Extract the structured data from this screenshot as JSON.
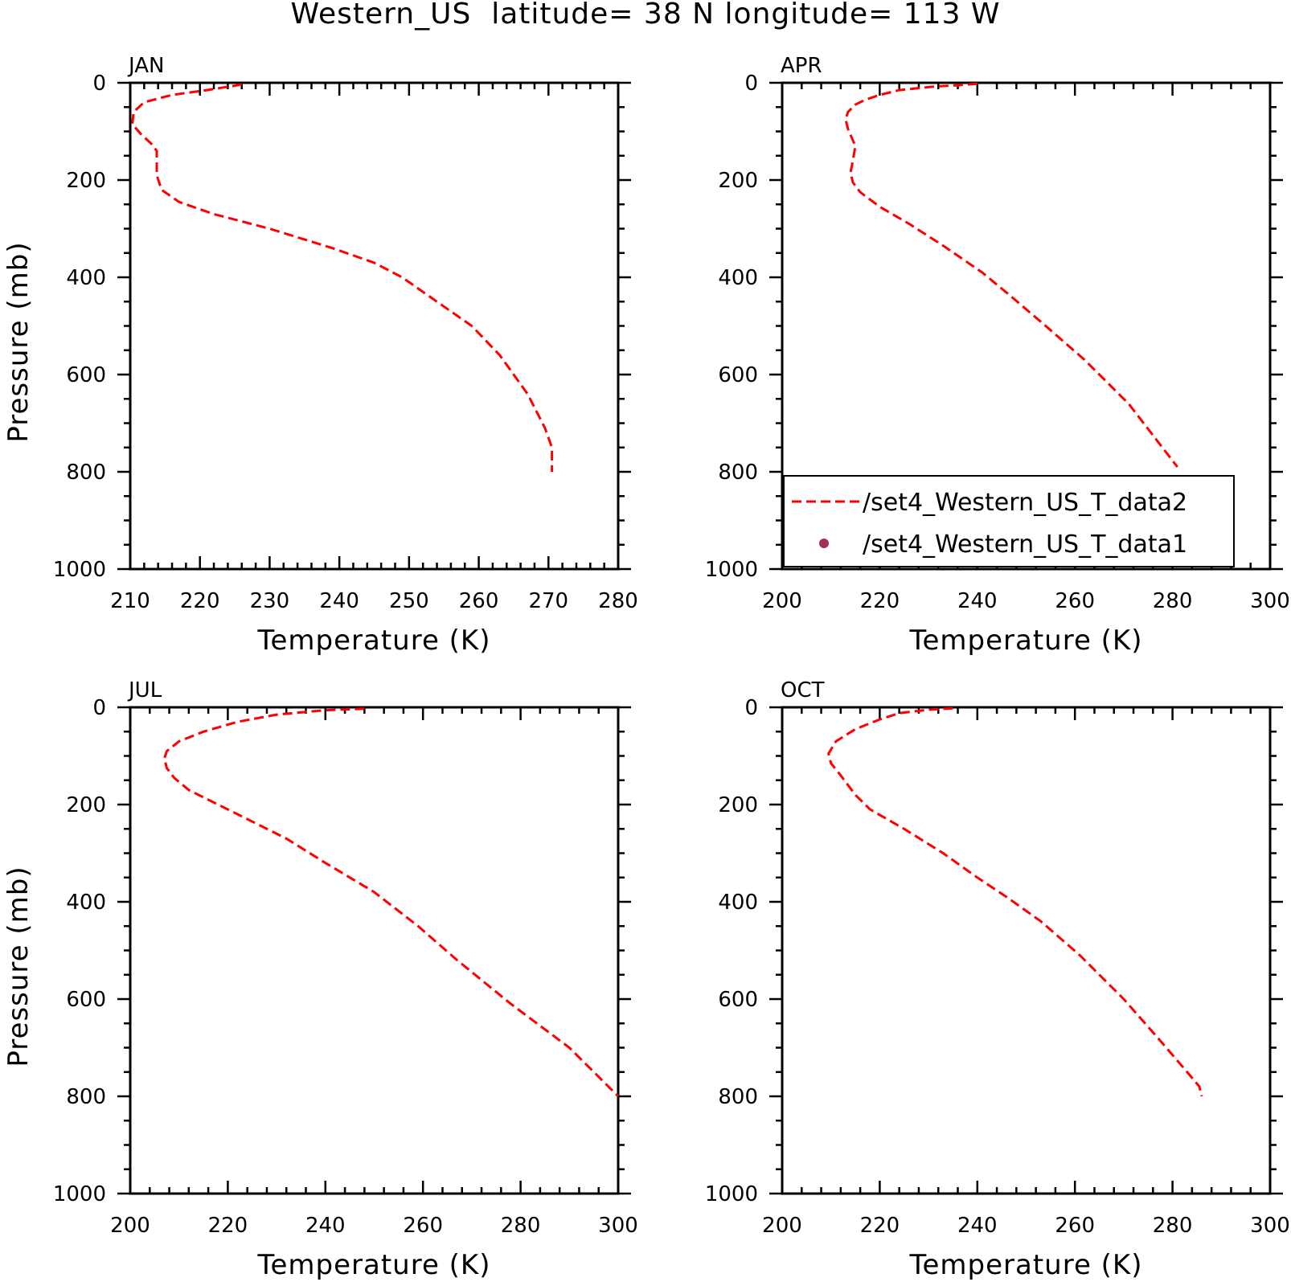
{
  "figure": {
    "title": "Western_US  latitude= 38 N longitude= 113 W",
    "line_color": "#ff0000",
    "marker_color": "#a0305a"
  },
  "chart_data": [
    {
      "type": "line",
      "title": "JAN",
      "xlabel": "Temperature (K)",
      "ylabel": "Pressure (mb)",
      "xlim": [
        210,
        280
      ],
      "ylim": [
        1000,
        0
      ],
      "y_inverted": true,
      "xticks": [
        210,
        220,
        230,
        240,
        250,
        260,
        270,
        280
      ],
      "yticks": [
        0,
        200,
        400,
        600,
        800,
        1000
      ],
      "series": [
        {
          "name": "/set4_Western_US_T_data2",
          "style": "dashed",
          "color": "#ff0000",
          "points": [
            [
              226,
              3
            ],
            [
              225,
              6
            ],
            [
              221,
              15
            ],
            [
              216,
              25
            ],
            [
              212,
              40
            ],
            [
              210.5,
              60
            ],
            [
              210.3,
              85
            ],
            [
              211.5,
              105
            ],
            [
              213,
              125
            ],
            [
              213.8,
              140
            ],
            [
              213.8,
              160
            ],
            [
              213.8,
              190
            ],
            [
              214.5,
              220
            ],
            [
              217,
              245
            ],
            [
              222,
              270
            ],
            [
              230,
              300
            ],
            [
              239,
              340
            ],
            [
              245,
              370
            ],
            [
              249,
              400
            ],
            [
              254,
              450
            ],
            [
              259,
              500
            ],
            [
              263,
              560
            ],
            [
              267,
              640
            ],
            [
              269.5,
              710
            ],
            [
              270.5,
              750
            ],
            [
              270.5,
              800
            ]
          ]
        }
      ]
    },
    {
      "type": "line",
      "title": "APR",
      "xlabel": "Temperature (K)",
      "ylabel": "",
      "xlim": [
        200,
        300
      ],
      "ylim": [
        1000,
        0
      ],
      "y_inverted": true,
      "xticks": [
        200,
        220,
        240,
        260,
        280,
        300
      ],
      "yticks": [
        0,
        200,
        400,
        600,
        800,
        1000
      ],
      "legend": {
        "position": "bottom-left",
        "entries": [
          {
            "label": "/set4_Western_US_T_data2",
            "style": "dashed-line",
            "color": "#ff0000"
          },
          {
            "label": "/set4_Western_US_T_data1",
            "style": "marker",
            "color": "#a0305a"
          }
        ]
      },
      "series": [
        {
          "name": "/set4_Western_US_T_data2",
          "style": "dashed",
          "color": "#ff0000",
          "points": [
            [
              240,
              2
            ],
            [
              236,
              5
            ],
            [
              231,
              8
            ],
            [
              224,
              15
            ],
            [
              220,
              25
            ],
            [
              217,
              35
            ],
            [
              215,
              45
            ],
            [
              213.5,
              60
            ],
            [
              213,
              75
            ],
            [
              213.5,
              95
            ],
            [
              215,
              130
            ],
            [
              214.5,
              160
            ],
            [
              214,
              185
            ],
            [
              214.5,
              205
            ],
            [
              216,
              225
            ],
            [
              220,
              255
            ],
            [
              226,
              290
            ],
            [
              233,
              335
            ],
            [
              241,
              390
            ],
            [
              247,
              440
            ],
            [
              254,
              500
            ],
            [
              262,
              570
            ],
            [
              271,
              660
            ],
            [
              281,
              790
            ]
          ]
        }
      ]
    },
    {
      "type": "line",
      "title": "JUL",
      "xlabel": "Temperature (K)",
      "ylabel": "Pressure (mb)",
      "xlim": [
        200,
        300
      ],
      "ylim": [
        1000,
        0
      ],
      "y_inverted": true,
      "xticks": [
        200,
        220,
        240,
        260,
        280,
        300
      ],
      "yticks": [
        0,
        200,
        400,
        600,
        800,
        1000
      ],
      "series": [
        {
          "name": "/set4_Western_US_T_data2",
          "style": "dashed",
          "color": "#ff0000",
          "points": [
            [
              248,
              3
            ],
            [
              240,
              6
            ],
            [
              230,
              15
            ],
            [
              222,
              30
            ],
            [
              215,
              50
            ],
            [
              210,
              70
            ],
            [
              207.5,
              90
            ],
            [
              207,
              105
            ],
            [
              207.5,
              125
            ],
            [
              209,
              145
            ],
            [
              212,
              170
            ],
            [
              217,
              195
            ],
            [
              224,
              230
            ],
            [
              232,
              270
            ],
            [
              240,
              320
            ],
            [
              250,
              380
            ],
            [
              259,
              450
            ],
            [
              267,
              520
            ],
            [
              278,
              610
            ],
            [
              290,
              700
            ],
            [
              297,
              770
            ],
            [
              300,
              800
            ]
          ]
        }
      ]
    },
    {
      "type": "line",
      "title": "OCT",
      "xlabel": "Temperature (K)",
      "ylabel": "",
      "xlim": [
        200,
        300
      ],
      "ylim": [
        1000,
        0
      ],
      "y_inverted": true,
      "xticks": [
        200,
        220,
        240,
        260,
        280,
        300
      ],
      "yticks": [
        0,
        200,
        400,
        600,
        800,
        1000
      ],
      "series": [
        {
          "name": "/set4_Western_US_T_data2",
          "style": "dashed",
          "color": "#ff0000",
          "points": [
            [
              235,
              2
            ],
            [
              230,
              5
            ],
            [
              224,
              12
            ],
            [
              220,
              25
            ],
            [
              215,
              45
            ],
            [
              211,
              70
            ],
            [
              209.5,
              95
            ],
            [
              210,
              115
            ],
            [
              212,
              140
            ],
            [
              215,
              180
            ],
            [
              218,
              210
            ],
            [
              225,
              250
            ],
            [
              233,
              300
            ],
            [
              240,
              350
            ],
            [
              246,
              390
            ],
            [
              253,
              440
            ],
            [
              261,
              510
            ],
            [
              270,
              600
            ],
            [
              277,
              680
            ],
            [
              283,
              750
            ],
            [
              285.5,
              780
            ],
            [
              286,
              800
            ]
          ]
        }
      ]
    }
  ]
}
